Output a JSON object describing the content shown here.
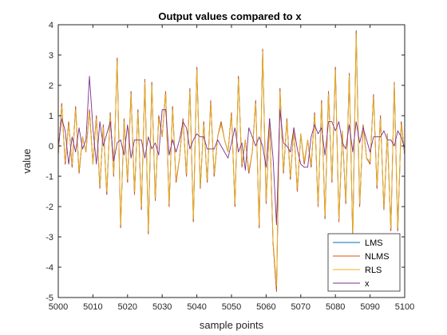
{
  "chart_data": {
    "type": "line",
    "title": "Output values compared to x",
    "xlabel": "sample points",
    "ylabel": "value",
    "xlim": [
      5000,
      5100
    ],
    "ylim": [
      -5,
      4
    ],
    "xticks": [
      5000,
      5010,
      5020,
      5030,
      5040,
      5050,
      5060,
      5070,
      5080,
      5090,
      5100
    ],
    "yticks": [
      4,
      3,
      2,
      1,
      0,
      -1,
      -2,
      -3,
      -4,
      -5
    ],
    "grid": false,
    "legend_position": "bottom-right",
    "x": [
      5000,
      5001,
      5002,
      5003,
      5004,
      5005,
      5006,
      5007,
      5008,
      5009,
      5010,
      5011,
      5012,
      5013,
      5014,
      5015,
      5016,
      5017,
      5018,
      5019,
      5020,
      5021,
      5022,
      5023,
      5024,
      5025,
      5026,
      5027,
      5028,
      5029,
      5030,
      5031,
      5032,
      5033,
      5034,
      5035,
      5036,
      5037,
      5038,
      5039,
      5040,
      5041,
      5042,
      5043,
      5044,
      5045,
      5046,
      5047,
      5048,
      5049,
      5050,
      5051,
      5052,
      5053,
      5054,
      5055,
      5056,
      5057,
      5058,
      5059,
      5060,
      5061,
      5062,
      5063,
      5064,
      5065,
      5066,
      5067,
      5068,
      5069,
      5070,
      5071,
      5072,
      5073,
      5074,
      5075,
      5076,
      5077,
      5078,
      5079,
      5080,
      5081,
      5082,
      5083,
      5084,
      5085,
      5086,
      5087,
      5088,
      5089,
      5090,
      5091,
      5092,
      5093,
      5094,
      5095,
      5096,
      5097,
      5098,
      5099,
      5100
    ],
    "series": [
      {
        "name": "LMS",
        "color": "#0072BD",
        "values": [
          -0.3,
          1.4,
          -0.6,
          0.8,
          -0.7,
          1.3,
          -0.9,
          0.3,
          -0.2,
          1.2,
          -0.6,
          1.0,
          -1.4,
          0.7,
          -1.6,
          1.1,
          -1.0,
          2.9,
          -2.7,
          0.9,
          -1.2,
          1.8,
          -1.6,
          1.2,
          -2.1,
          2.2,
          -2.9,
          2.1,
          -1.8,
          1.0,
          0.3,
          1.8,
          -2.0,
          1.3,
          -1.2,
          -0.4,
          0.9,
          -1.0,
          1.9,
          -2.5,
          2.6,
          -1.4,
          0.8,
          -1.2,
          1.5,
          -1.0,
          0.3,
          0.8,
          0.2,
          -0.2,
          1.1,
          -2.0,
          2.3,
          -0.7,
          0.2,
          -0.9,
          -0.2,
          1.5,
          -2.7,
          3.2,
          -1.9,
          0.9,
          -3.2,
          -4.8,
          1.9,
          -0.9,
          0.9,
          -1.1,
          0.6,
          -1.5,
          0.4,
          -0.6,
          0.2,
          -0.7,
          1.1,
          -2.0,
          1.5,
          -2.4,
          1.8,
          -1.2,
          2.6,
          -2.5,
          0.5,
          -1.9,
          2.4,
          -3.1,
          3.8,
          -2.0,
          0.7,
          -0.4,
          -0.6,
          1.7,
          -1.4,
          1.0,
          -2.1,
          0.4,
          -2.8,
          2.1,
          -2.8,
          0.8,
          -0.3
        ]
      },
      {
        "name": "NLMS",
        "color": "#D95319",
        "values": [
          -0.3,
          1.4,
          -0.6,
          0.8,
          -0.7,
          1.3,
          -0.9,
          0.3,
          -0.2,
          1.2,
          -0.6,
          1.0,
          -1.4,
          0.7,
          -1.6,
          1.1,
          -1.0,
          2.9,
          -2.7,
          0.9,
          -1.2,
          1.8,
          -1.6,
          1.2,
          -2.1,
          2.2,
          -2.9,
          2.1,
          -1.8,
          1.0,
          0.3,
          1.8,
          -2.0,
          1.3,
          -1.2,
          -0.4,
          0.9,
          -1.0,
          1.9,
          -2.5,
          2.6,
          -1.4,
          0.8,
          -1.2,
          1.5,
          -1.0,
          0.3,
          0.8,
          0.2,
          -0.2,
          1.1,
          -2.0,
          2.3,
          -0.7,
          0.2,
          -0.9,
          -0.2,
          1.5,
          -2.7,
          3.2,
          -1.9,
          0.9,
          -3.2,
          -4.8,
          1.9,
          -0.9,
          0.9,
          -1.1,
          0.6,
          -1.5,
          0.4,
          -0.6,
          0.2,
          -0.7,
          1.1,
          -2.0,
          1.5,
          -2.4,
          1.8,
          -1.2,
          2.6,
          -2.5,
          0.5,
          -1.9,
          2.4,
          -3.1,
          3.8,
          -2.0,
          0.7,
          -0.4,
          -0.6,
          1.7,
          -1.4,
          1.0,
          -2.1,
          0.4,
          -2.8,
          2.1,
          -2.8,
          0.8,
          -0.3
        ]
      },
      {
        "name": "RLS",
        "color": "#EDB120",
        "values": [
          -0.2,
          1.3,
          -0.5,
          0.7,
          -0.6,
          1.2,
          -0.8,
          0.3,
          -0.2,
          1.1,
          -0.6,
          0.9,
          -1.3,
          0.6,
          -1.5,
          1.0,
          -0.9,
          2.8,
          -2.6,
          0.8,
          -1.1,
          1.7,
          -1.5,
          1.1,
          -2.0,
          2.1,
          -2.8,
          2.0,
          -1.7,
          0.9,
          0.3,
          1.7,
          -1.9,
          1.2,
          -1.1,
          -0.4,
          0.8,
          -0.9,
          1.8,
          -2.4,
          2.5,
          -1.3,
          0.7,
          -1.1,
          1.4,
          -0.9,
          0.3,
          0.7,
          0.2,
          -0.2,
          1.0,
          -1.9,
          2.2,
          -0.6,
          0.2,
          -0.8,
          -0.2,
          1.4,
          -2.6,
          3.1,
          -1.8,
          0.8,
          -3.1,
          -4.6,
          1.8,
          -0.8,
          0.8,
          -1.0,
          0.5,
          -1.4,
          0.4,
          -0.5,
          0.2,
          -0.6,
          1.0,
          -1.9,
          1.4,
          -2.3,
          1.7,
          -1.1,
          2.5,
          -2.4,
          0.5,
          -1.8,
          2.3,
          -3.0,
          3.7,
          -1.9,
          0.6,
          -0.4,
          -0.5,
          1.6,
          -1.3,
          0.9,
          -2.0,
          0.4,
          -2.7,
          2.0,
          -2.7,
          0.7,
          -0.2
        ]
      },
      {
        "name": "x",
        "color": "#7E2F8E",
        "values": [
          0.0,
          0.9,
          0.5,
          -0.6,
          0.3,
          -0.2,
          0.6,
          -0.1,
          0.2,
          2.3,
          0.6,
          -0.6,
          0.8,
          0.0,
          0.4,
          0.8,
          -0.5,
          0.1,
          0.2,
          -0.3,
          0.7,
          -0.4,
          0.2,
          0.2,
          0.2,
          -0.4,
          0.3,
          -0.1,
          0.1,
          -0.3,
          1.2,
          1.2,
          -0.3,
          0.2,
          -0.2,
          0.2,
          0.8,
          0.6,
          -0.1,
          0.2,
          0.4,
          0.3,
          0.3,
          -0.1,
          -0.1,
          -0.1,
          0.2,
          0.0,
          -0.2,
          -0.4,
          0.1,
          0.6,
          -0.2,
          0.1,
          -0.8,
          0.6,
          0.3,
          0.0,
          0.3,
          0.0,
          -0.7,
          0.9,
          -0.4,
          -2.6,
          1.2,
          0.1,
          0.0,
          -0.2,
          0.6,
          -0.1,
          -0.6,
          -0.7,
          -0.7,
          0.3,
          0.7,
          0.4,
          0.6,
          -0.3,
          0.8,
          0.8,
          0.5,
          0.8,
          0.1,
          -0.1,
          0.7,
          -0.2,
          0.8,
          0.1,
          0.6,
          0.2,
          -0.2,
          0.3,
          0.3,
          0.3,
          0.5,
          0.2,
          0.2,
          0.0,
          0.5,
          0.3,
          -0.1
        ]
      }
    ]
  }
}
